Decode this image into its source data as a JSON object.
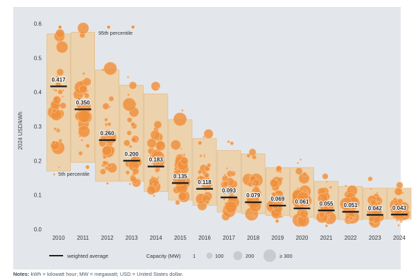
{
  "chart_data": {
    "type": "box-bubble",
    "ylabel": "2024 USD/kWh",
    "ylim": [
      0,
      0.6
    ],
    "yticks": [
      "0.0",
      "0.1",
      "0.2",
      "0.3",
      "0.4",
      "0.5",
      "0.6"
    ],
    "categories": [
      "2010",
      "2011",
      "2012",
      "2013",
      "2014",
      "2015",
      "2016",
      "2017",
      "2018",
      "2019",
      "2020",
      "2021",
      "2022",
      "2023",
      "2024"
    ],
    "series": [
      {
        "name": "weighted average",
        "values": [
          0.417,
          0.35,
          0.26,
          0.2,
          0.183,
          0.135,
          0.118,
          0.093,
          0.079,
          0.069,
          0.061,
          0.055,
          0.051,
          0.042,
          0.043
        ],
        "labels": [
          "0.417",
          "0.350",
          "0.260",
          "0.200",
          "0.183",
          "0.135",
          "0.118",
          "0.093",
          "0.079",
          "0.069",
          "0.061",
          "0.055",
          "0.051",
          "0.042",
          "0.043"
        ]
      },
      {
        "name": "95th percentile",
        "values": [
          0.57,
          0.575,
          0.465,
          0.42,
          0.395,
          0.32,
          0.265,
          0.23,
          0.22,
          0.18,
          0.18,
          0.14,
          0.125,
          0.12,
          0.12
        ]
      },
      {
        "name": "5th percentile",
        "values": [
          0.17,
          0.195,
          0.14,
          0.14,
          0.11,
          0.085,
          0.07,
          0.05,
          0.045,
          0.04,
          0.035,
          0.03,
          0.028,
          0.03,
          0.03
        ]
      }
    ],
    "annotations": {
      "p95": "95th percentile",
      "p5": "5th percentile"
    },
    "legend": {
      "weighted_average": "weighted average",
      "capacity_title": "Capacity (MW)",
      "capacity_sizes": [
        "1",
        "100",
        "200",
        "≥ 300"
      ]
    },
    "colors": {
      "box_fill": "#ecd3ad",
      "box_stroke": "#e3bd8c",
      "bubble": "#ef8f3a",
      "bubble_stroke": "#f6c493",
      "line": "#1f1f1f",
      "axis_text": "#333333"
    }
  },
  "notes": {
    "label": "Notes:",
    "text": "kWh = kilowatt hour; MW = megawatt; USD = United States dollar."
  }
}
